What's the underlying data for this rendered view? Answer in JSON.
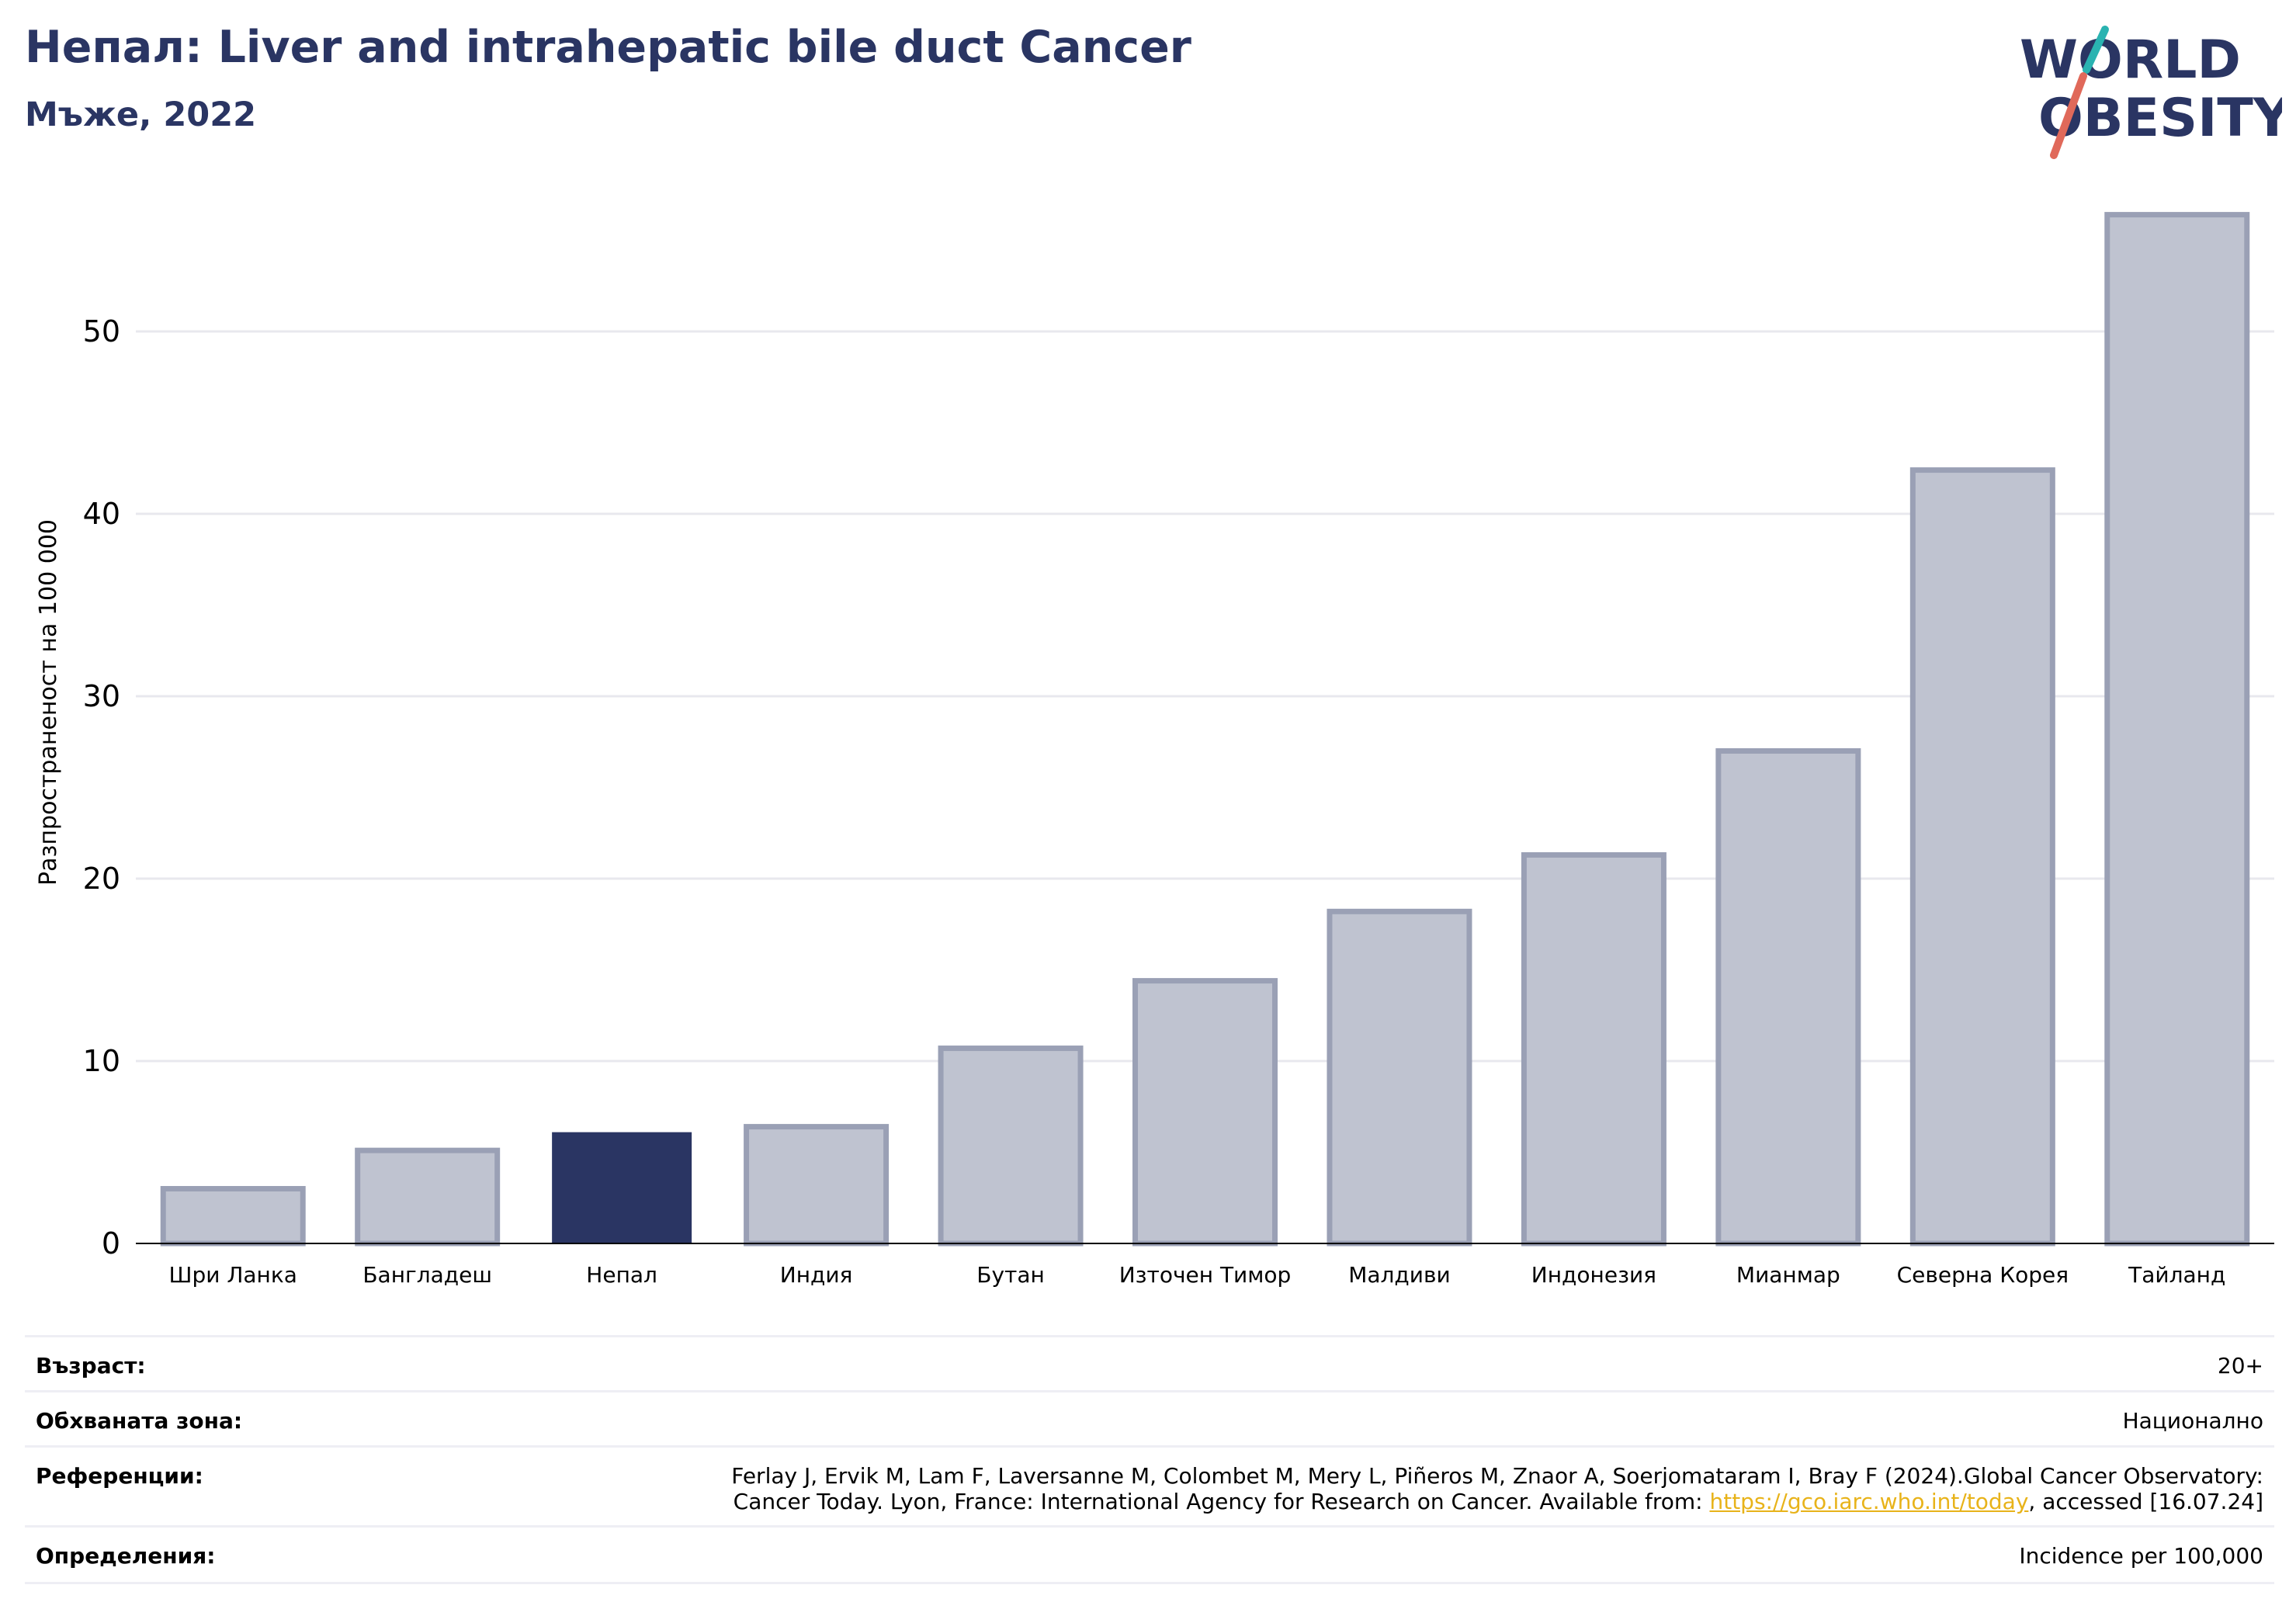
{
  "header": {
    "title": "Непал: Liver and intrahepatic bile duct Cancer",
    "subtitle": "Мъже, 2022"
  },
  "logo": {
    "line1": "WORLD",
    "line2": "OBESITY"
  },
  "colors": {
    "highlight_bar": "#2a3563",
    "other_bar_fill": "#bfc3d0",
    "other_bar_stroke": "#9aa0b5",
    "title": "#2a3563",
    "grid": "#e8e8ee",
    "link": "#e8b31a",
    "logo_teal": "#2ab3b1",
    "logo_coral": "#e0695a"
  },
  "chart_data": {
    "type": "bar",
    "categories": [
      "Шри Ланка",
      "Бангладеш",
      "Непал",
      "Индия",
      "Бутан",
      "Източен Тимор",
      "Малдиви",
      "Индонезия",
      "Мианмар",
      "Северна Корея",
      "Тайланд"
    ],
    "values": [
      3.0,
      5.1,
      6.1,
      6.4,
      10.7,
      14.4,
      18.2,
      21.3,
      27.0,
      42.4,
      56.4
    ],
    "highlight": "Непал",
    "ylabel": "Разпространеност  на 100 000",
    "yticks": [
      0,
      10,
      20,
      30,
      40,
      50
    ],
    "ylim": [
      0,
      58
    ],
    "grid": true
  },
  "footer": {
    "rows": [
      {
        "label": "Възраст:",
        "value": "20+"
      },
      {
        "label": "Обхваната зона:",
        "value": "Национално"
      },
      {
        "label": "Референции:",
        "value_line1": "Ferlay J, Ervik M, Lam F, Laversanne M, Colombet M, Mery L, Piñeros M, Znaor A, Soerjomataram I, Bray F (2024).Global Cancer Observatory:",
        "value_line2_before": "Cancer Today. Lyon, France: International Agency for Research on Cancer. Available from: ",
        "link": "https://gco.iarc.who.int/today",
        "value_line2_after": ", accessed [16.07.24]"
      },
      {
        "label": "Определения:",
        "value": "Incidence per 100,000"
      }
    ]
  }
}
